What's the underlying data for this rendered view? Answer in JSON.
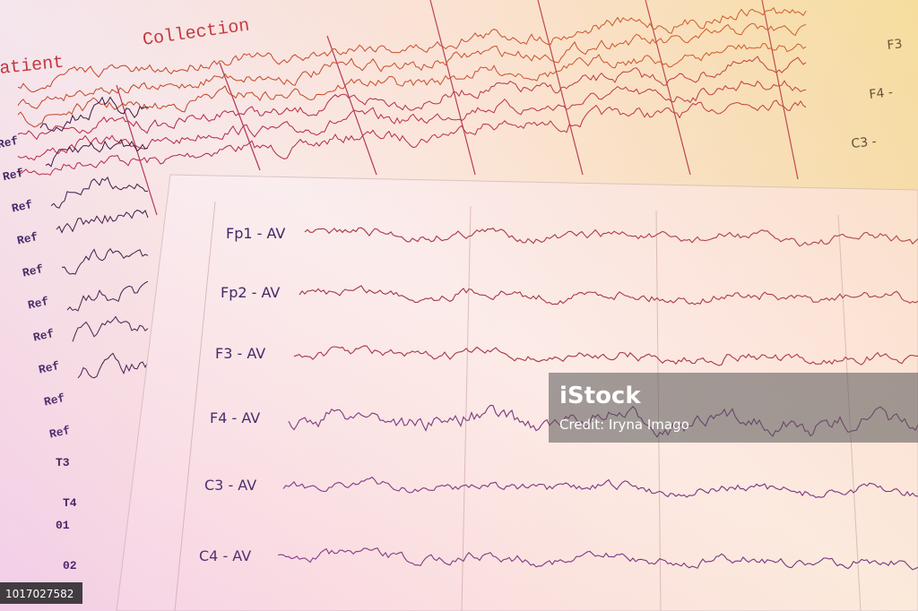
{
  "back_sheet": {
    "heading": "Collection",
    "patient": "atient",
    "left_labels": [
      "Ref",
      "Ref",
      "Ref",
      "Ref",
      "Ref",
      "Ref",
      "Ref",
      "Ref",
      "Ref",
      "Ref"
    ],
    "lower_labels": [
      "T3",
      "T4",
      "01",
      "02"
    ],
    "right_labels": [
      "F3",
      "F4 -",
      "C3 -"
    ]
  },
  "front_sheet": {
    "channels": [
      "Fp1 - AV",
      "Fp2 - AV",
      "F3 - AV",
      "F4 - AV",
      "C3 - AV",
      "C4 - AV"
    ]
  },
  "watermark": {
    "brand": "iStock",
    "credit": "Credit: Iryna Imago"
  },
  "image_id": "1017027582"
}
